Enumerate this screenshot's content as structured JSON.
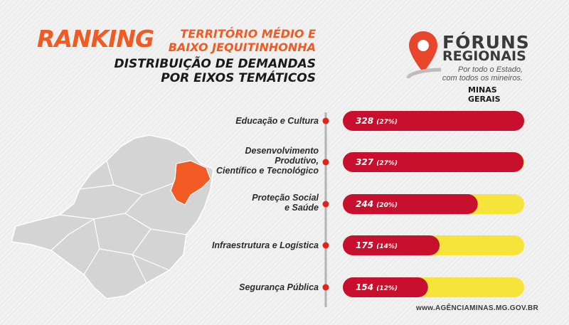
{
  "header": {
    "ranking": "RANKING",
    "territory_line1": "TERRITÓRIO MÉDIO E",
    "territory_line2": "BAIXO JEQUITINHONHA",
    "subtitle_line1": "DISTRIBUIÇÃO DE DEMANDAS",
    "subtitle_line2": "POR EIXOS TEMÁTICOS"
  },
  "logo": {
    "title_line1": "FÓRUNS",
    "title_line2": "REGIONAIS",
    "tagline_line1": "Por todo o Estado,",
    "tagline_line2": "com todos os mineiros.",
    "state_mark": "MINAS GERAIS",
    "pin_color": "#e8452c"
  },
  "footer": {
    "source": "www.AGÊNCIAMINAS.MG.GOV.BR"
  },
  "colors": {
    "bar_red": "#c8102e",
    "bar_yellow": "#f7e43a",
    "highlight": "#f15a22",
    "map_gray": "#d4d4d4"
  },
  "chart_data": {
    "type": "bar",
    "orientation": "horizontal",
    "categories": [
      [
        "Educação e Cultura"
      ],
      [
        "Desenvolvimento",
        "Produtivo,",
        "Científico e Tecnológico"
      ],
      [
        "Proteção Social",
        "e Saúde"
      ],
      [
        "Infraestrutura e Logística"
      ],
      [
        "Segurança Pública"
      ]
    ],
    "values": [
      328,
      327,
      244,
      175,
      154
    ],
    "value_labels": [
      "328",
      "327",
      "244",
      "175",
      "154"
    ],
    "percent_labels": [
      "(27%)",
      "(27%)",
      "(20%)",
      "(14%)",
      "(12%)"
    ],
    "percents": [
      27,
      27,
      20,
      14,
      12
    ],
    "xlim": [
      0,
      328
    ],
    "legend": "none",
    "grid": false
  }
}
